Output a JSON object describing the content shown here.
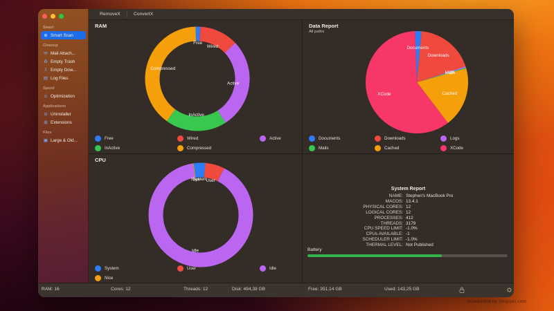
{
  "window": {
    "tabs": [
      {
        "label": "RemoveX"
      },
      {
        "label": "ConvertX"
      }
    ]
  },
  "sidebar": {
    "sections": [
      {
        "title": "Smart",
        "items": [
          {
            "label": "Smart Scan",
            "icon": "smart-scan-icon",
            "glyph": "⊕",
            "selected": true
          }
        ]
      },
      {
        "title": "Cleanup",
        "items": [
          {
            "label": "Mail Attach...",
            "icon": "mail-icon",
            "glyph": "✉"
          },
          {
            "label": "Empty Trash",
            "icon": "trash-icon",
            "glyph": "♻"
          },
          {
            "label": "Empty Dow...",
            "icon": "download-icon",
            "glyph": "⇩"
          },
          {
            "label": "Log Files",
            "icon": "log-file-icon",
            "glyph": "▤"
          }
        ]
      },
      {
        "title": "Speed",
        "items": [
          {
            "label": "Optimization",
            "icon": "optimization-icon",
            "glyph": "⊙"
          }
        ]
      },
      {
        "title": "Applications",
        "items": [
          {
            "label": "Uninstaller",
            "icon": "uninstaller-icon",
            "glyph": "⊖"
          },
          {
            "label": "Extensions",
            "icon": "extensions-icon",
            "glyph": "⊞"
          }
        ]
      },
      {
        "title": "Files",
        "items": [
          {
            "label": "Large & Old...",
            "icon": "folder-icon",
            "glyph": "▣"
          }
        ]
      }
    ]
  },
  "chart_data": [
    {
      "id": "ram",
      "type": "donut",
      "title": "RAM",
      "size": 170,
      "r": 65,
      "thickness": 21,
      "label_r": 52,
      "rotate": -2,
      "legend_position": "bottom",
      "slices": [
        {
          "name": "Free",
          "value": 1.5,
          "color": "#2e7cf6"
        },
        {
          "name": "Wired",
          "value": 12,
          "color": "#f04a3e"
        },
        {
          "name": "Active",
          "value": 28,
          "color": "#bb66f0"
        },
        {
          "name": "InActive",
          "value": 19,
          "color": "#38c74f"
        },
        {
          "name": "Compressed",
          "value": 39.5,
          "color": "#f5a00b"
        }
      ]
    },
    {
      "id": "data",
      "type": "pie",
      "title": "Data Report",
      "subtitle": "All paths",
      "size": 160,
      "r": 74,
      "label_r": 50,
      "rotate": -2,
      "legend_position": "bottom",
      "slices": [
        {
          "name": "Documents",
          "value": 2,
          "color": "#2e7cf6"
        },
        {
          "name": "Downloads",
          "value": 18.5,
          "color": "#f04a3e"
        },
        {
          "name": "Logs",
          "value": 0.4,
          "color": "#bb66f0"
        },
        {
          "name": "Mails",
          "value": 0.3,
          "color": "#38c74f"
        },
        {
          "name": "Cached",
          "value": 19,
          "color": "#f5a00b"
        },
        {
          "name": "XCode",
          "value": 59.8,
          "color": "#f73767"
        }
      ]
    },
    {
      "id": "cpu",
      "type": "donut",
      "title": "CPU",
      "size": 170,
      "r": 65,
      "thickness": 21,
      "label_r": 52,
      "rotate": -8,
      "legend_position": "bottom",
      "slices": [
        {
          "name": "System",
          "value": 3.6,
          "color": "#2e7cf6"
        },
        {
          "name": "User",
          "value": 6,
          "color": "#f04a3e"
        },
        {
          "name": "Idle",
          "value": 90.2,
          "color": "#bb66f0"
        },
        {
          "name": "Nice",
          "value": 0.2,
          "color": "#f5a00b"
        }
      ]
    }
  ],
  "system_report": {
    "title": "System Report",
    "rows": [
      {
        "label": "NAME:",
        "value": "Stephen's MacBook Pro"
      },
      {
        "label": "MACOS:",
        "value": "13.4.1"
      },
      {
        "label": "PHYSICAL CORES:",
        "value": "12"
      },
      {
        "label": "LOGICAL CORES:",
        "value": "12"
      },
      {
        "label": "PROCESSES:",
        "value": "412"
      },
      {
        "label": "THREADS:",
        "value": "3179"
      },
      {
        "label": "CPU SPEED LIMIT:",
        "value": "-1.0%"
      },
      {
        "label": "CPUs AVAILABLE:",
        "value": "-1"
      },
      {
        "label": "SCHEDULER LIMIT:",
        "value": "-1.0%"
      },
      {
        "label": "THERMAL LEVEL:",
        "value": "Not Published"
      }
    ],
    "battery_label": "Battery",
    "battery_percent": 67
  },
  "status_bar": {
    "items": [
      "RAM: 16",
      "Cores: 12",
      "Threads: 12",
      "Disk: 494,38 GB",
      "Free: 351,14 GB",
      "Used: 143,25 GB"
    ],
    "icons": [
      "lock-icon",
      "gear-icon"
    ]
  },
  "colors": {
    "accent": "#1d6ce8",
    "battery_fill": "#34b44a",
    "traffic_lights": [
      "#ff5f57",
      "#febc2e",
      "#28c840"
    ]
  },
  "watermark": "Screenshot by Xnapper.com"
}
